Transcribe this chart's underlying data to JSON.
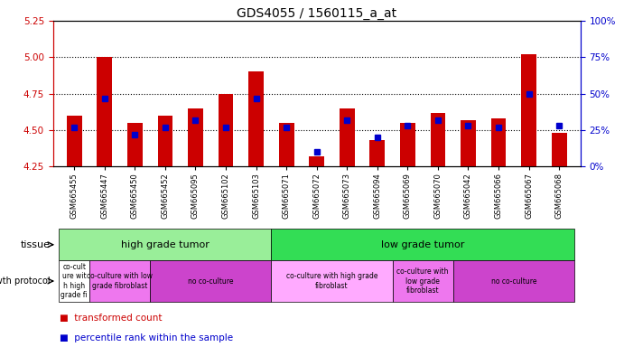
{
  "title": "GDS4055 / 1560115_a_at",
  "samples": [
    "GSM665455",
    "GSM665447",
    "GSM665450",
    "GSM665452",
    "GSM665095",
    "GSM665102",
    "GSM665103",
    "GSM665071",
    "GSM665072",
    "GSM665073",
    "GSM665094",
    "GSM665069",
    "GSM665070",
    "GSM665042",
    "GSM665066",
    "GSM665067",
    "GSM665068"
  ],
  "red_values": [
    4.6,
    5.0,
    4.55,
    4.6,
    4.65,
    4.75,
    4.9,
    4.55,
    4.32,
    4.65,
    4.43,
    4.55,
    4.62,
    4.57,
    4.58,
    5.02,
    4.48
  ],
  "blue_values": [
    27,
    47,
    22,
    27,
    32,
    27,
    47,
    27,
    10,
    32,
    20,
    28,
    32,
    28,
    27,
    50,
    28
  ],
  "ylim_left": [
    4.25,
    5.25
  ],
  "ylim_right": [
    0,
    100
  ],
  "yticks_left": [
    4.25,
    4.5,
    4.75,
    5.0,
    5.25
  ],
  "yticks_right": [
    0,
    25,
    50,
    75,
    100
  ],
  "ytick_labels_right": [
    "0%",
    "25%",
    "50%",
    "75%",
    "100%"
  ],
  "hlines": [
    4.5,
    4.75,
    5.0
  ],
  "tissue_groups": [
    {
      "label": "high grade tumor",
      "start": 0,
      "end": 7,
      "color": "#99EE99"
    },
    {
      "label": "low grade tumor",
      "start": 7,
      "end": 17,
      "color": "#33DD55"
    }
  ],
  "protocol_groups": [
    {
      "label": "co-cult\nure wit\nh high\ngrade fi",
      "start": 0,
      "end": 1,
      "color": "#FFFFFF"
    },
    {
      "label": "co-culture with low\ngrade fibroblast",
      "start": 1,
      "end": 3,
      "color": "#EE77EE"
    },
    {
      "label": "no co-culture",
      "start": 3,
      "end": 7,
      "color": "#CC44CC"
    },
    {
      "label": "co-culture with high grade\nfibroblast",
      "start": 7,
      "end": 11,
      "color": "#FFAAFF"
    },
    {
      "label": "co-culture with\nlow grade\nfibroblast",
      "start": 11,
      "end": 13,
      "color": "#EE77EE"
    },
    {
      "label": "no co-culture",
      "start": 13,
      "end": 17,
      "color": "#CC44CC"
    }
  ],
  "red_color": "#CC0000",
  "blue_color": "#0000CC",
  "bar_width": 0.5,
  "base_value": 4.25
}
